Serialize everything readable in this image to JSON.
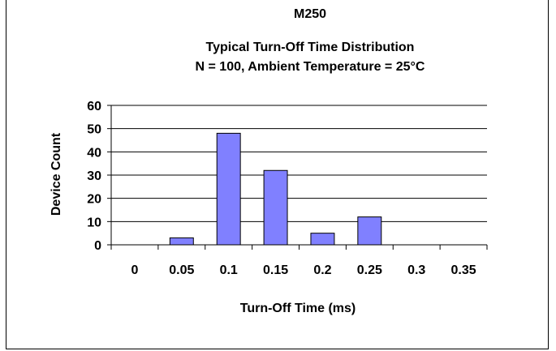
{
  "chart_data": {
    "type": "bar",
    "title": "M250",
    "subtitle_lines": [
      "Typical Turn-Off Time Distribution",
      "N = 100, Ambient Temperature = 25°C"
    ],
    "xlabel": "Turn-Off Time (ms)",
    "ylabel": "Device Count",
    "categories": [
      "0",
      "0.05",
      "0.1",
      "0.15",
      "0.2",
      "0.25",
      "0.3",
      "0.35"
    ],
    "values": [
      0,
      3,
      48,
      32,
      5,
      12,
      0,
      0
    ],
    "ylim": [
      0,
      60
    ],
    "yticks": [
      "0",
      "10",
      "20",
      "30",
      "40",
      "50",
      "60"
    ],
    "grid": true,
    "bar_color": "#8080ff",
    "legend": "none"
  }
}
